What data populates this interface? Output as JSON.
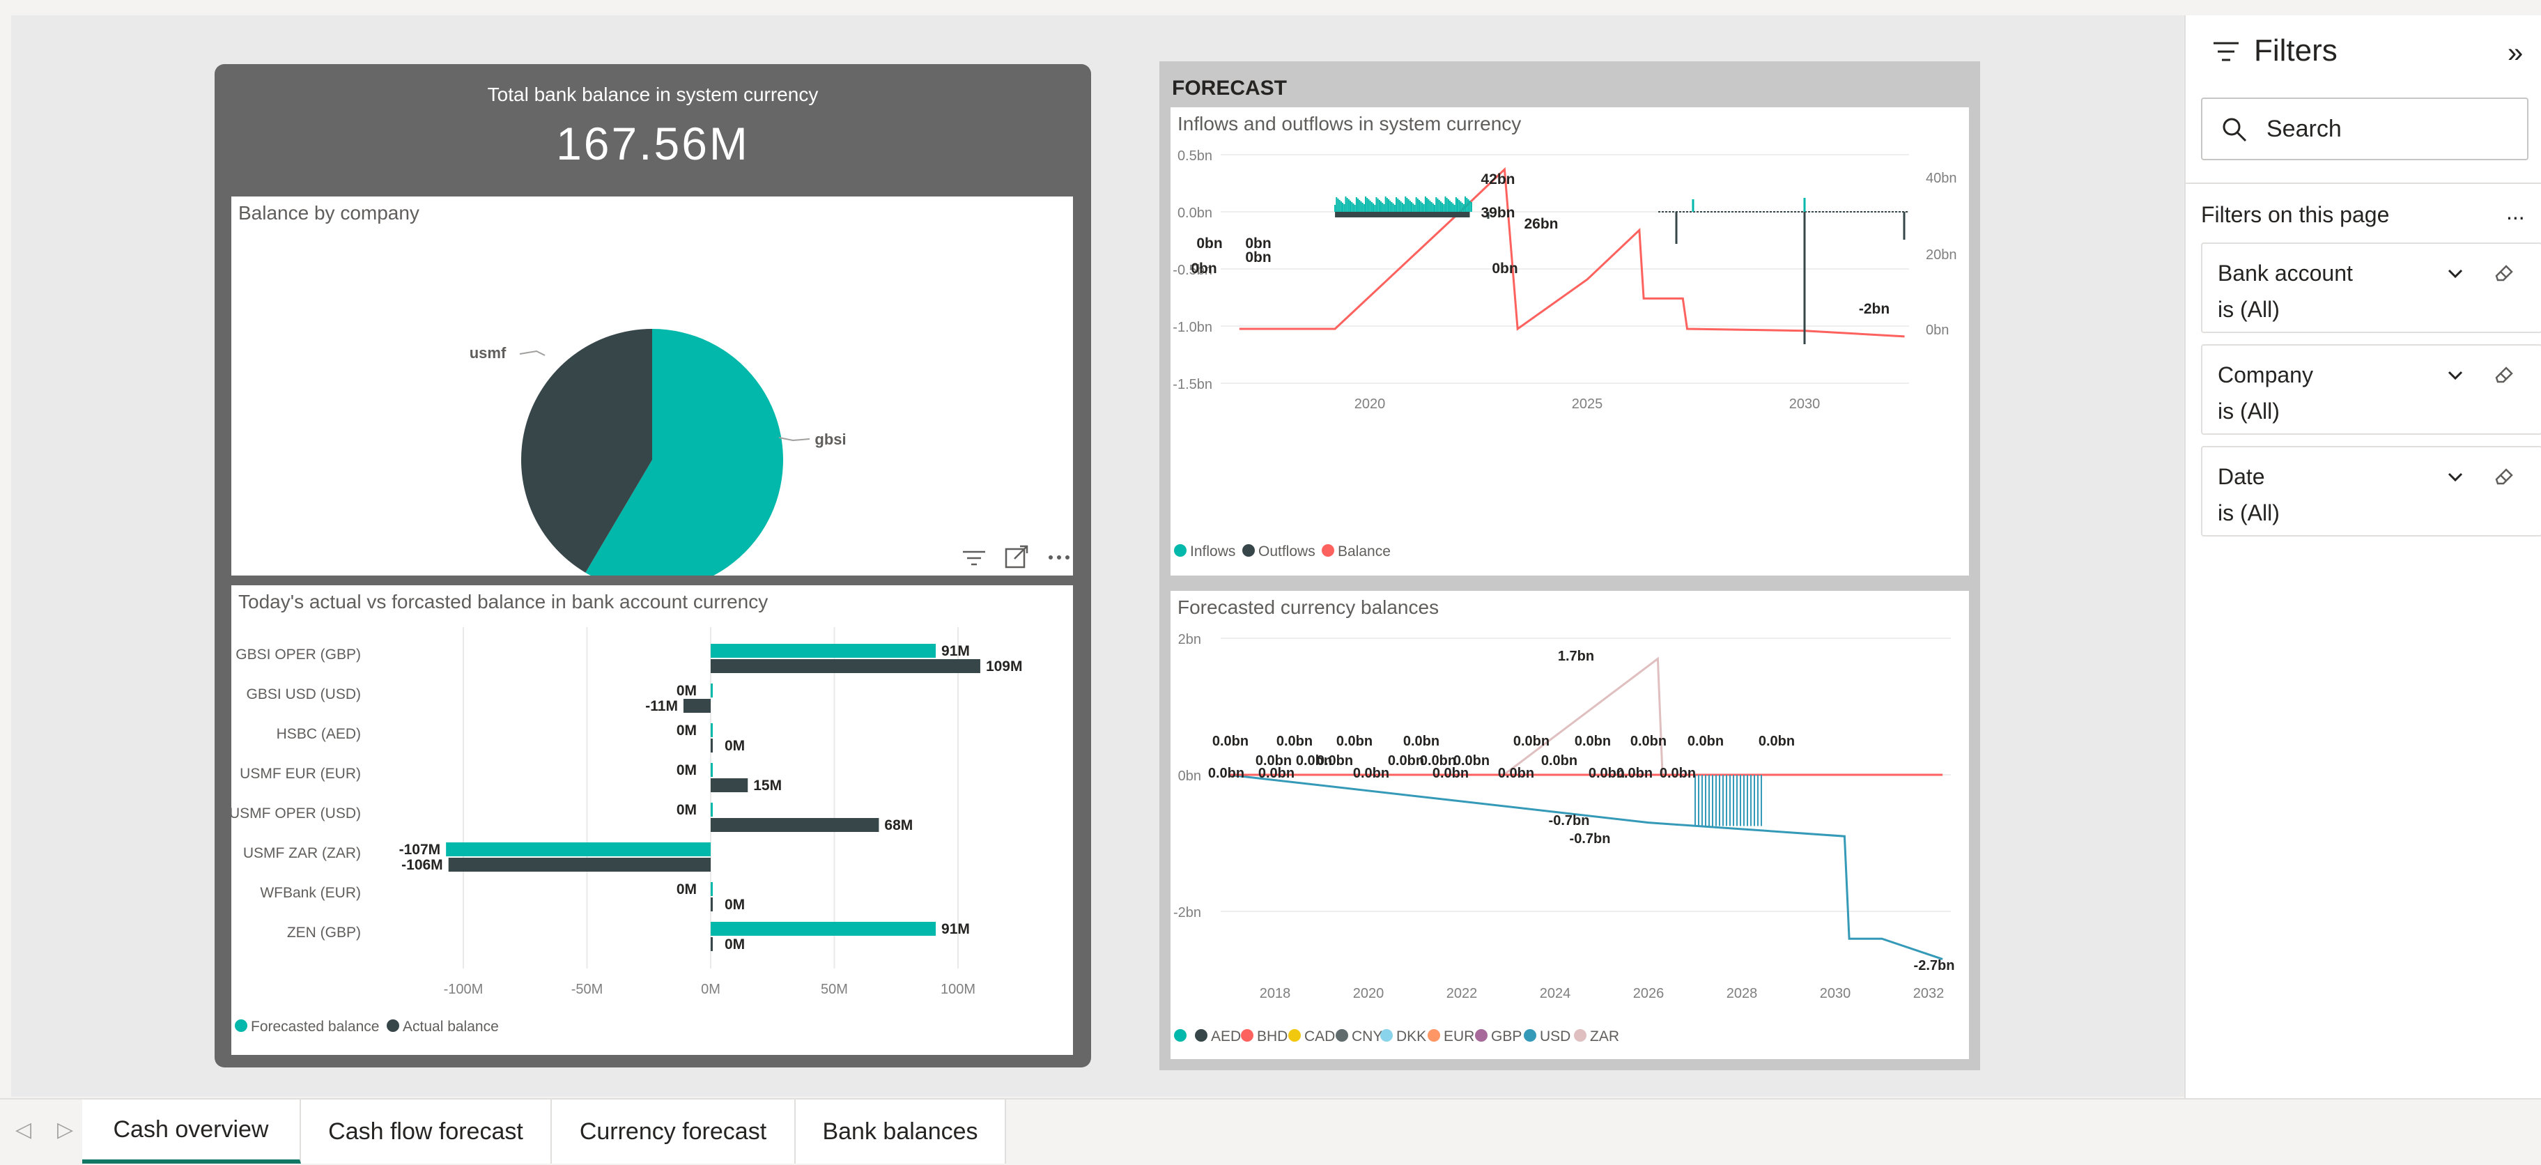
{
  "kpi": {
    "title": "Total bank balance in system currency",
    "value": "167.56M"
  },
  "pie": {
    "title": "Balance by company",
    "slices": [
      {
        "label": "gbsi",
        "fraction": 0.585,
        "color": "#01b8aa"
      },
      {
        "label": "usmf",
        "fraction": 0.415,
        "color": "#374649"
      }
    ]
  },
  "bar": {
    "title": "Today's actual vs forcasted balance in bank account currency",
    "legend": [
      "Forecasted balance",
      "Actual balance"
    ],
    "colors": [
      "#01b8aa",
      "#374649"
    ]
  },
  "forecast": {
    "group_title": "FORECAST",
    "inflows_title": "Inflows and outflows in system currency",
    "inflows_legend": [
      "Inflows",
      "Outflows",
      "Balance"
    ],
    "inflows_legend_colors": [
      "#01b8aa",
      "#374649",
      "#fd625e"
    ],
    "currency_title": "Forecasted currency balances",
    "currency_legend": [
      "",
      "AED",
      "BHD",
      "CAD",
      "CNY",
      "DKK",
      "EUR",
      "GBP",
      "USD",
      "ZAR"
    ],
    "currency_legend_colors": [
      "#01b8aa",
      "#374649",
      "#fd625e",
      "#f2c80f",
      "#5f6b6d",
      "#8ad4eb",
      "#fe9666",
      "#a66999",
      "#3599b8",
      "#dfbfbf"
    ]
  },
  "visual_header": {
    "icons": [
      "filter-icon",
      "focus-mode-icon",
      "more-options-icon"
    ]
  },
  "filters": {
    "title": "Filters",
    "search_placeholder": "Search",
    "section_label": "Filters on this page",
    "more": "...",
    "cards": [
      {
        "name": "Bank account",
        "state": "is (All)"
      },
      {
        "name": "Company",
        "state": "is (All)"
      },
      {
        "name": "Date",
        "state": "is (All)"
      }
    ]
  },
  "tabs": [
    "Cash overview",
    "Cash flow forecast",
    "Currency forecast",
    "Bank balances"
  ],
  "active_tab": "Cash overview",
  "chart_data": [
    {
      "type": "pie",
      "title": "Balance by company",
      "categories": [
        "gbsi",
        "usmf"
      ],
      "values": [
        58.5,
        41.5
      ]
    },
    {
      "type": "bar",
      "title": "Today's actual vs forcasted balance in bank account currency",
      "orientation": "horizontal",
      "categories": [
        "GBSI OPER (GBP)",
        "GBSI USD (USD)",
        "HSBC (AED)",
        "USMF EUR (EUR)",
        "USMF OPER (USD)",
        "USMF ZAR (ZAR)",
        "WFBank (EUR)",
        "ZEN (GBP)"
      ],
      "series": [
        {
          "name": "Forecasted balance",
          "values": [
            91,
            0,
            0,
            0,
            0,
            -107,
            0,
            91
          ],
          "labels": [
            "91M",
            "0M",
            "0M",
            "0M",
            "0M",
            "-107M",
            "0M",
            "91M"
          ]
        },
        {
          "name": "Actual balance",
          "values": [
            109,
            -11,
            0,
            15,
            68,
            -106,
            0,
            0
          ],
          "labels": [
            "109M",
            "-11M",
            "0M",
            "15M",
            "68M",
            "-106M",
            "0M",
            "0M"
          ]
        }
      ],
      "xlim": [
        -100,
        100
      ],
      "x_ticks": [
        "-100M",
        "-50M",
        "0M",
        "50M",
        "100M"
      ],
      "legend": "bottom-left"
    },
    {
      "type": "line",
      "title": "Inflows and outflows in system currency",
      "y_ticks_left": [
        "0.5bn",
        "0.0bn",
        "-0.5bn",
        "-1.0bn",
        "-1.5bn"
      ],
      "y_ticks_right": [
        "40bn",
        "20bn",
        "0bn"
      ],
      "x_ticks": [
        "2020",
        "2025",
        "2030"
      ],
      "series": [
        {
          "name": "Balance",
          "x": [
            2017.0,
            2019.2,
            2022.0,
            2023.1,
            2023.4,
            2025.0,
            2026.2,
            2026.3,
            2027.2,
            2027.3,
            2030.0,
            2032.3
          ],
          "y": [
            0,
            0,
            30,
            42,
            0,
            13,
            26,
            8,
            8,
            0,
            -0.5,
            -2
          ]
        },
        {
          "name": "Inflows",
          "x": [
            2019.2,
            2022.3,
            2027.3,
            2030.2
          ],
          "y": [
            0.02,
            0.02,
            0.05,
            0.05
          ]
        },
        {
          "name": "Outflows",
          "x": [
            2022.6,
            2027.0,
            2030.2,
            2032.3
          ],
          "y": [
            -0.08,
            -0.45,
            -1.3,
            -0.2
          ]
        }
      ],
      "data_labels": [
        "42bn",
        "39bn",
        "26bn",
        "0bn",
        "0bn",
        "0bn",
        "0bn",
        "0bn",
        "-2bn"
      ],
      "legend": "bottom-left"
    },
    {
      "type": "line",
      "title": "Forecasted currency balances",
      "y_ticks": [
        "2bn",
        "0bn",
        "-2bn"
      ],
      "x_ticks": [
        "2018",
        "2020",
        "2022",
        "2024",
        "2026",
        "2028",
        "2030",
        "2032"
      ],
      "series": [
        {
          "name": "ZAR",
          "x": [
            2022.9,
            2026.2,
            2026.3
          ],
          "y": [
            0,
            1.7,
            0
          ]
        },
        {
          "name": "USD",
          "x": [
            2017.0,
            2026.0,
            2030.2,
            2030.3,
            2031.0,
            2032.3
          ],
          "y": [
            0,
            -0.7,
            -0.9,
            -2.4,
            -2.4,
            -2.7
          ]
        },
        {
          "name": "BHD",
          "x": [
            2017.0,
            2032.3
          ],
          "y": [
            0,
            0
          ]
        }
      ],
      "data_labels": [
        "1.7bn",
        "-0.7bn",
        "-0.7bn",
        "-2.7bn",
        "0.0bn"
      ],
      "legend": "bottom-left"
    }
  ]
}
